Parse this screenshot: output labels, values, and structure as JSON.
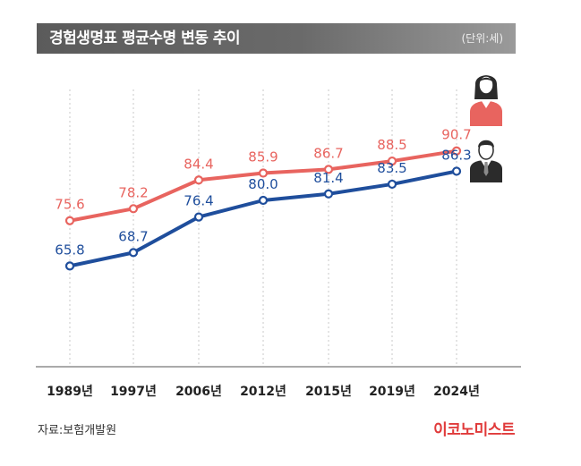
{
  "header": {
    "title": "경험생명표 평균수명 변동 추이",
    "unit": "(단위:세)"
  },
  "chart_data": {
    "type": "line",
    "title": "경험생명표 평균수명 변동 추이",
    "unit": "(단위:세)",
    "categories": [
      "1989년",
      "1997년",
      "2006년",
      "2012년",
      "2015년",
      "2019년",
      "2024년"
    ],
    "series": [
      {
        "name": "여성",
        "icon": "female-person-icon",
        "color": "#e8645f",
        "values": [
          75.6,
          78.2,
          84.4,
          85.9,
          86.7,
          88.5,
          90.7
        ],
        "labels": [
          "75.6",
          "78.2",
          "84.4",
          "85.9",
          "86.7",
          "88.5",
          "90.7"
        ]
      },
      {
        "name": "남성",
        "icon": "male-person-icon",
        "color": "#1f4e9c",
        "values": [
          65.8,
          68.7,
          76.4,
          80.0,
          81.4,
          83.5,
          86.3
        ],
        "labels": [
          "65.8",
          "68.7",
          "76.4",
          "80.0",
          "81.4",
          "83.5",
          "86.3"
        ]
      }
    ],
    "xlabel": "",
    "ylabel": "",
    "ylim": [
      44,
      104
    ],
    "grid": "vertical dotted"
  },
  "footer": {
    "source": "자료:보험개발원",
    "brand": "이코노미스트"
  }
}
